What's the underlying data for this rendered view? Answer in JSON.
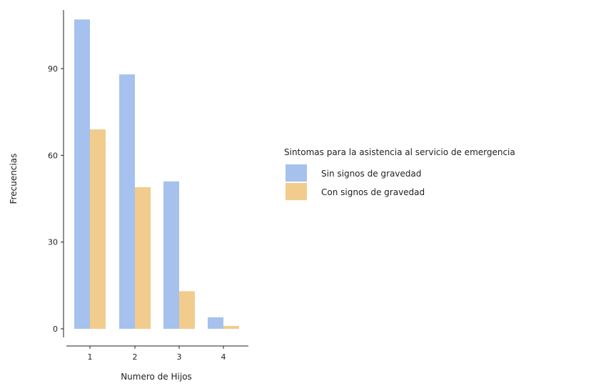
{
  "chart_data": {
    "type": "bar",
    "title": "",
    "xlabel": "Numero de Hijos",
    "ylabel": "Frecuencias",
    "categories": [
      "1",
      "2",
      "3",
      "4"
    ],
    "ylim": [
      0,
      110
    ],
    "yticks": [
      0,
      30,
      60,
      90
    ],
    "grid": false,
    "legend_position": "right",
    "legend_title": "Sintomas para la asistencia al servicio de emergencia",
    "series": [
      {
        "name": "Sin signos de gravedad",
        "color": "#a6c1ee",
        "values": [
          107,
          88,
          51,
          4
        ]
      },
      {
        "name": "Con signos de gravedad",
        "color": "#f2cc8c",
        "values": [
          69,
          49,
          13,
          1
        ]
      }
    ]
  }
}
